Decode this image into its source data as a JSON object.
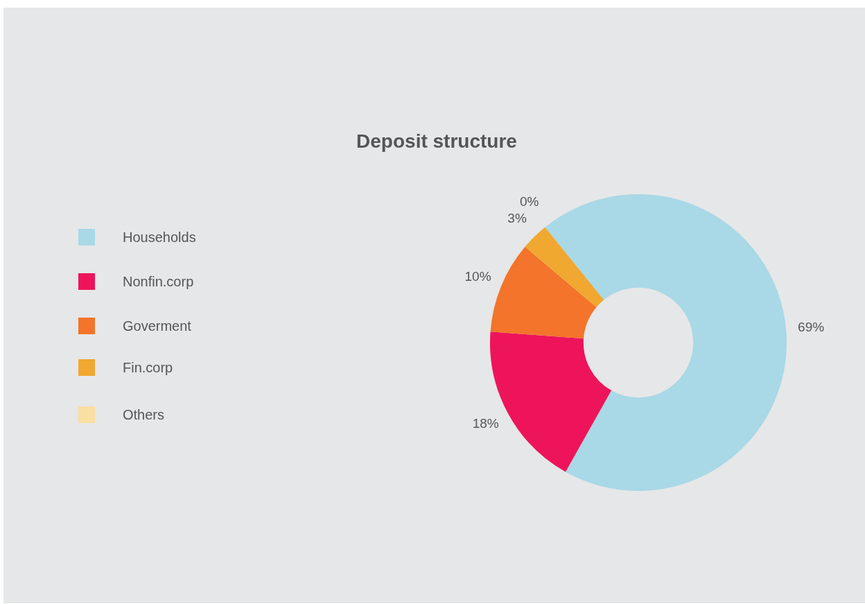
{
  "chart_data": {
    "type": "donut",
    "title": "Deposit structure",
    "categories": [
      "Households",
      "Nonfin.corp",
      "Goverment",
      "Fin.corp",
      "Others"
    ],
    "values": [
      69,
      18,
      10,
      3,
      0
    ],
    "colors": [
      "#a9d8e6",
      "#ee145b",
      "#f3742a",
      "#f0a830",
      "#f9dfa0"
    ],
    "value_labels": [
      "69%",
      "18%",
      "10%",
      "3%",
      "0%"
    ],
    "legend": "left"
  }
}
